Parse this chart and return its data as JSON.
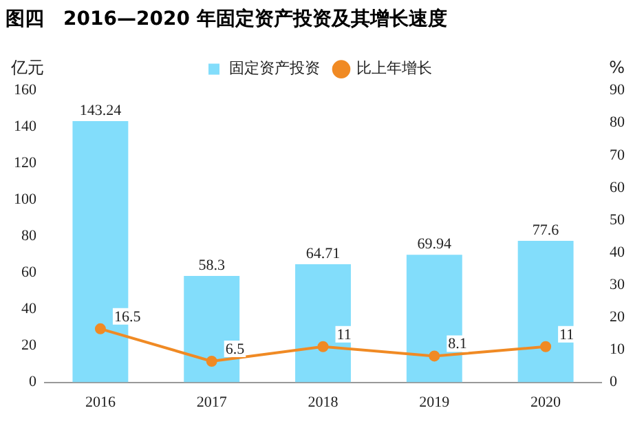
{
  "chart_data": {
    "type": "bar",
    "title": "图四　2016—2020 年固定资产投资及其增长速度",
    "ylabel": "亿元",
    "y2label": "%",
    "categories": [
      "2016",
      "2017",
      "2018",
      "2019",
      "2020"
    ],
    "series": [
      {
        "name": "固定资产投资",
        "color": "#82ddfb",
        "values": [
          143.24,
          58.3,
          64.71,
          69.94,
          77.6
        ]
      },
      {
        "name": "比上年增长",
        "type": "line",
        "color": "#f08a24",
        "axis": "y2",
        "values": [
          16.5,
          6.5,
          11,
          8.1,
          11
        ]
      }
    ],
    "ylim": [
      0,
      160
    ],
    "yticks": [
      0,
      20,
      40,
      60,
      80,
      100,
      120,
      140,
      160
    ],
    "y2lim": [
      0,
      90
    ],
    "y2ticks": [
      0,
      10,
      20,
      30,
      40,
      50,
      60,
      70,
      80,
      90
    ],
    "grid": false,
    "legend": "top",
    "marker": "circle",
    "data_labels": true
  }
}
